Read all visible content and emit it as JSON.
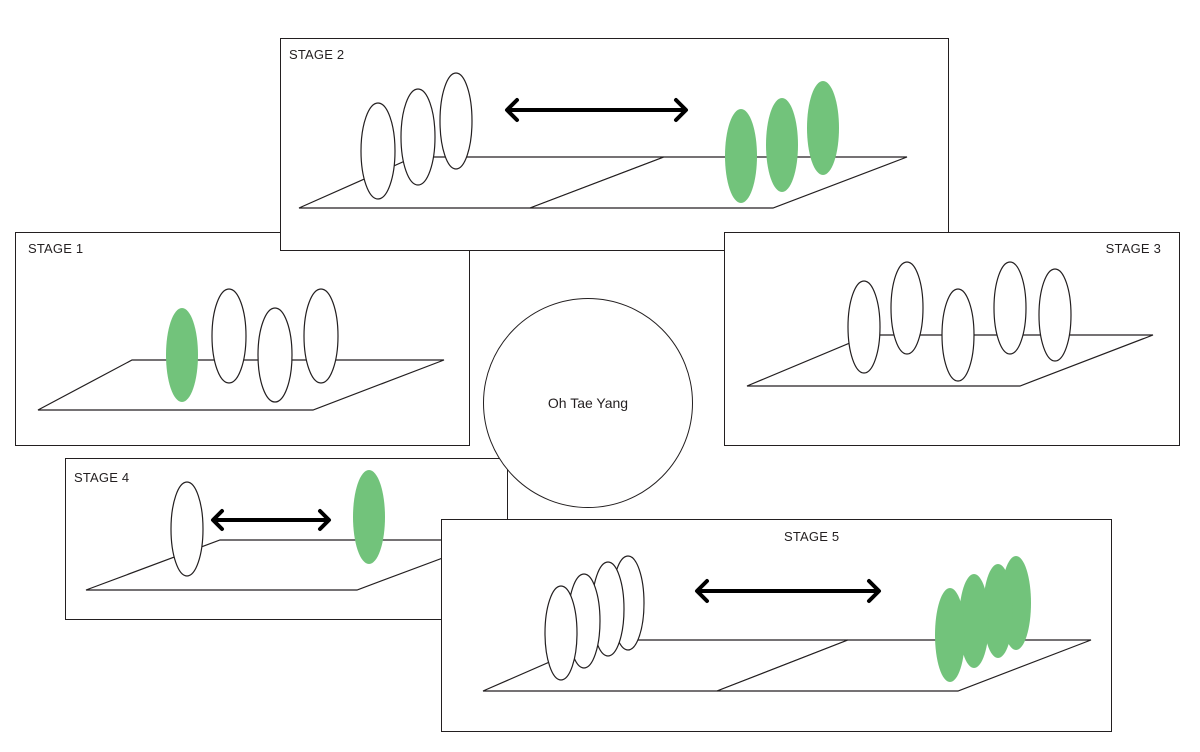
{
  "colors": {
    "green": "#72c37b",
    "outline": "#231f20",
    "background": "#ffffff"
  },
  "center": {
    "label": "Oh Tae Yang"
  },
  "stages": [
    {
      "label": "STAGE 1"
    },
    {
      "label": "STAGE 2"
    },
    {
      "label": "STAGE 3"
    },
    {
      "label": "STAGE 4"
    },
    {
      "label": "STAGE 5"
    }
  ]
}
